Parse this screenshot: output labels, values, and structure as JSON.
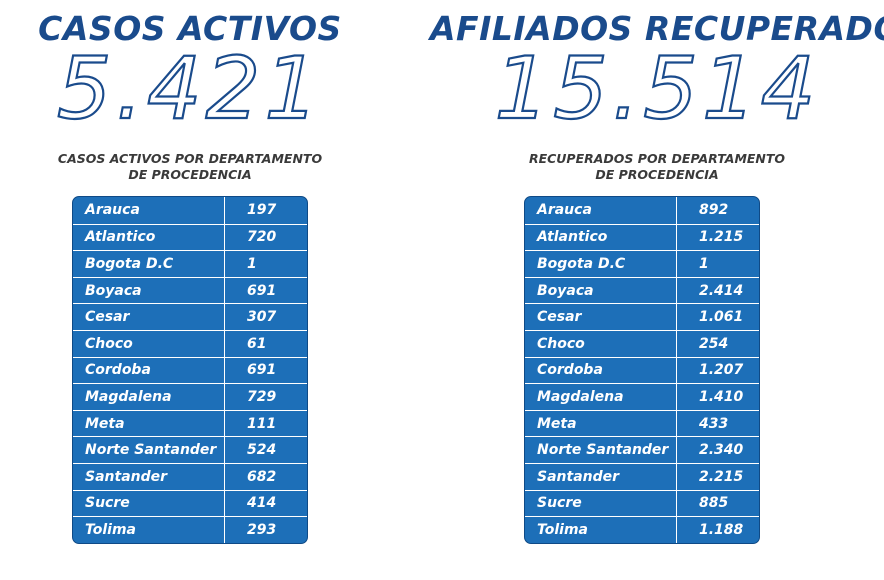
{
  "left": {
    "heading": "CASOS ACTIVOS",
    "total": "5.421",
    "subtitle_line1": "CASOS ACTIVOS POR DEPARTAMENTO",
    "subtitle_line2": "DE PROCEDENCIA",
    "rows": [
      {
        "name": "Arauca",
        "value": "197"
      },
      {
        "name": "Atlantico",
        "value": "720"
      },
      {
        "name": "Bogota D.C",
        "value": "1"
      },
      {
        "name": "Boyaca",
        "value": "691"
      },
      {
        "name": "Cesar",
        "value": "307"
      },
      {
        "name": "Choco",
        "value": "61"
      },
      {
        "name": "Cordoba",
        "value": "691"
      },
      {
        "name": "Magdalena",
        "value": "729"
      },
      {
        "name": "Meta",
        "value": "111"
      },
      {
        "name": "Norte Santander",
        "value": "524"
      },
      {
        "name": "Santander",
        "value": "682"
      },
      {
        "name": "Sucre",
        "value": "414"
      },
      {
        "name": "Tolima",
        "value": "293"
      }
    ]
  },
  "right": {
    "heading": "AFILIADOS RECUPERADOS",
    "total": "15.514",
    "subtitle_line1": "RECUPERADOS POR DEPARTAMENTO",
    "subtitle_line2": "DE PROCEDENCIA",
    "rows": [
      {
        "name": "Arauca",
        "value": "892"
      },
      {
        "name": "Atlantico",
        "value": "1.215"
      },
      {
        "name": "Bogota D.C",
        "value": "1"
      },
      {
        "name": "Boyaca",
        "value": "2.414"
      },
      {
        "name": "Cesar",
        "value": "1.061"
      },
      {
        "name": "Choco",
        "value": "254"
      },
      {
        "name": "Cordoba",
        "value": "1.207"
      },
      {
        "name": "Magdalena",
        "value": "1.410"
      },
      {
        "name": "Meta",
        "value": "433"
      },
      {
        "name": "Norte Santander",
        "value": "2.340"
      },
      {
        "name": "Santander",
        "value": "2.215"
      },
      {
        "name": "Sucre",
        "value": "885"
      },
      {
        "name": "Tolima",
        "value": "1.188"
      }
    ]
  },
  "colors": {
    "heading": "#1a4b8c",
    "table_fill": "#1d6fb8",
    "table_border": "#0f4a86",
    "subtitle": "#3a3a3a"
  }
}
